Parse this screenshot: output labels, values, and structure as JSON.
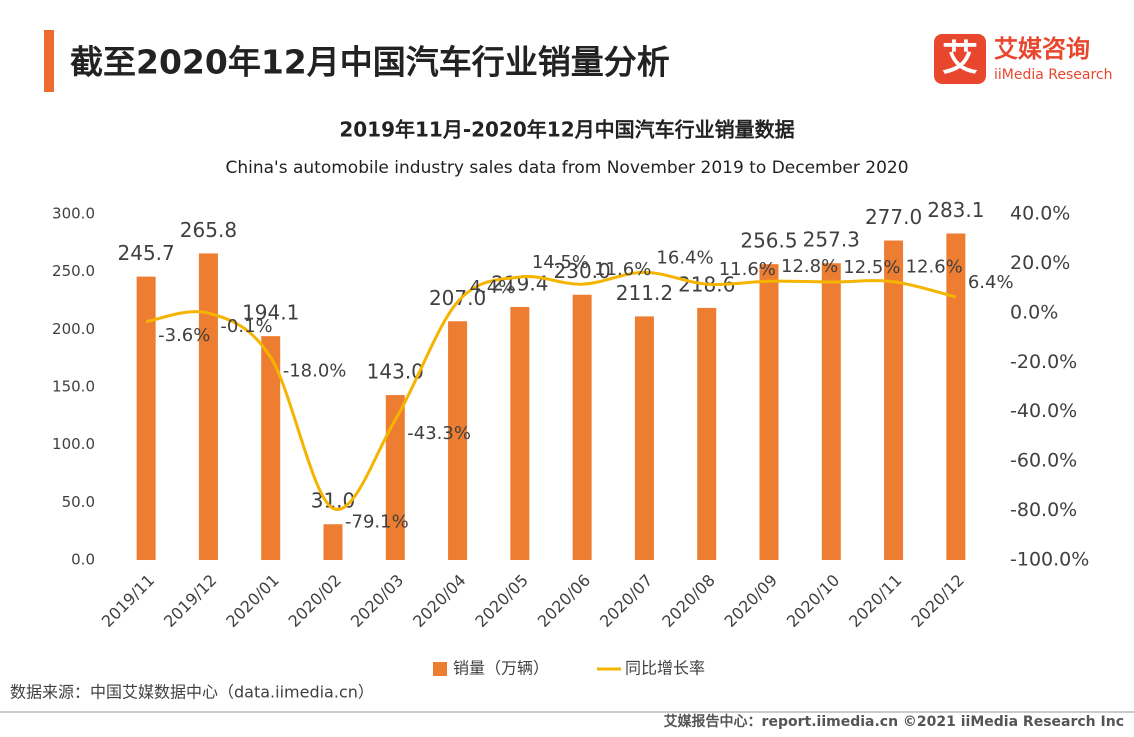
{
  "header": {
    "title": "截至2020年12月中国汽车行业销量分析",
    "logo": {
      "mark": "艾",
      "name": "艾媒咨询",
      "name_en": "iiMedia Research"
    }
  },
  "chart_data": {
    "type": "combo",
    "title": "2019年11月-2020年12月中国汽车行业销量数据",
    "subtitle": "China's automobile industry sales data from November 2019 to December 2020",
    "categories": [
      "2019/11",
      "2019/12",
      "2020/01",
      "2020/02",
      "2020/03",
      "2020/04",
      "2020/05",
      "2020/06",
      "2020/07",
      "2020/08",
      "2020/09",
      "2020/10",
      "2020/11",
      "2020/12"
    ],
    "series": [
      {
        "name": "销量（万辆）",
        "type": "bar",
        "color": "#ed7d31",
        "values": [
          245.7,
          265.8,
          194.1,
          31.0,
          143.0,
          207.0,
          219.4,
          230.0,
          211.2,
          218.6,
          256.5,
          257.3,
          277.0,
          283.1
        ],
        "value_labels": [
          "245.7",
          "265.8",
          "194.1",
          "31.0",
          "143.0",
          "207.0",
          "219.4",
          "230.0",
          "211.2",
          "218.6",
          "256.5",
          "257.3",
          "277.0",
          "283.1"
        ]
      },
      {
        "name": "同比增长率",
        "type": "line",
        "axis": "y2",
        "color": "#f5b400",
        "values": [
          -3.6,
          -0.1,
          -18.0,
          -79.1,
          -43.3,
          4.4,
          14.5,
          11.6,
          16.4,
          11.6,
          12.8,
          12.5,
          12.6,
          6.4
        ],
        "value_labels": [
          "-3.6%",
          "-0.1%",
          "-18.0%",
          "-79.1%",
          "-43.3%",
          "4.4%",
          "14.5%",
          "11.6%",
          "16.4%",
          "11.6%",
          "12.8%",
          "12.5%",
          "12.6%",
          "6.4%"
        ]
      }
    ],
    "ylim": [
      0,
      300
    ],
    "yticks": [
      {
        "value": 0,
        "label": "0.0"
      },
      {
        "value": 50,
        "label": "50.0"
      },
      {
        "value": 100,
        "label": "100.0"
      },
      {
        "value": 150,
        "label": "150.0"
      },
      {
        "value": 200,
        "label": "200.0"
      },
      {
        "value": 250,
        "label": "250.0"
      },
      {
        "value": 300,
        "label": "300.0"
      }
    ],
    "y2lim": [
      -100,
      40
    ],
    "y2ticks": [
      {
        "value": -100,
        "label": "-100.0%"
      },
      {
        "value": -80,
        "label": "-80.0%"
      },
      {
        "value": -60,
        "label": "-60.0%"
      },
      {
        "value": -40,
        "label": "-40.0%"
      },
      {
        "value": -20,
        "label": "-20.0%"
      },
      {
        "value": 0,
        "label": "0.0%"
      },
      {
        "value": 20,
        "label": "20.0%"
      },
      {
        "value": 40,
        "label": "40.0%"
      }
    ],
    "grid": false
  },
  "footer": {
    "source": "数据来源：中国艾媒数据中心（data.iimedia.cn）",
    "copyright": "艾媒报告中心：report.iimedia.cn  ©2021  iiMedia Research  Inc"
  }
}
